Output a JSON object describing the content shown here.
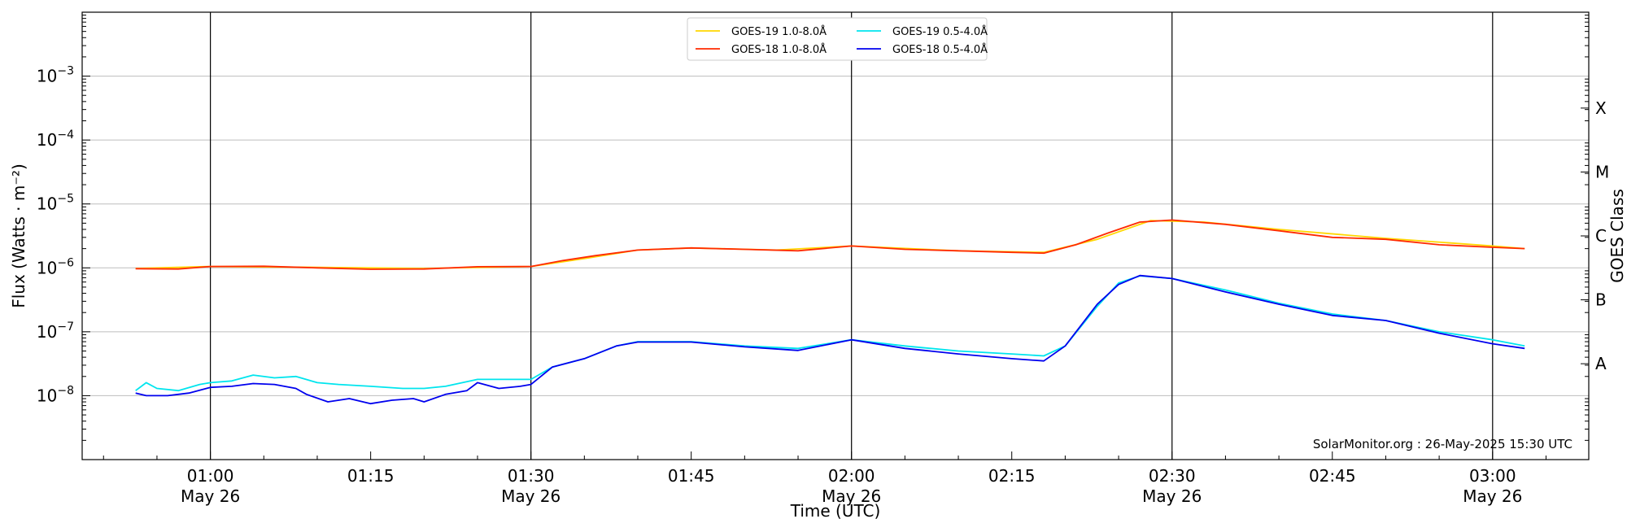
{
  "chart_data": {
    "type": "line",
    "xlabel": "Time (UTC)",
    "ylabel": "Flux (Watts · m⁻²)",
    "y2label": "GOES Class",
    "ylog": true,
    "ylim": [
      1e-09,
      0.01
    ],
    "xlim": [
      "2025-05-26 00:48",
      "2025-05-26 03:09"
    ],
    "grid": "horizontal major y",
    "legend_placement": "top-center",
    "y_ticks": [
      {
        "value": 1e-08,
        "base": "10",
        "exp": "−8"
      },
      {
        "value": 1e-07,
        "base": "10",
        "exp": "−7"
      },
      {
        "value": 1e-06,
        "base": "10",
        "exp": "−6"
      },
      {
        "value": 1e-05,
        "base": "10",
        "exp": "−5"
      },
      {
        "value": 0.0001,
        "base": "10",
        "exp": "−4"
      },
      {
        "value": 0.001,
        "base": "10",
        "exp": "−3"
      }
    ],
    "x_ticks": [
      {
        "time": "01:00",
        "label": "01:00",
        "sub": "May 26"
      },
      {
        "time": "01:15",
        "label": "01:15",
        "sub": ""
      },
      {
        "time": "01:30",
        "label": "01:30",
        "sub": "May 26"
      },
      {
        "time": "01:45",
        "label": "01:45",
        "sub": ""
      },
      {
        "time": "02:00",
        "label": "02:00",
        "sub": "May 26"
      },
      {
        "time": "02:15",
        "label": "02:15",
        "sub": ""
      },
      {
        "time": "02:30",
        "label": "02:30",
        "sub": "May 26"
      },
      {
        "time": "02:45",
        "label": "02:45",
        "sub": ""
      },
      {
        "time": "03:00",
        "label": "03:00",
        "sub": "May 26"
      }
    ],
    "vertical_markers": [
      "01:00",
      "01:30",
      "02:00",
      "02:30",
      "03:00"
    ],
    "goes_classes": [
      {
        "label": "X",
        "flux": 0.0001
      },
      {
        "label": "M",
        "flux": 1e-05
      },
      {
        "label": "C",
        "flux": 1e-06
      },
      {
        "label": "B",
        "flux": 1e-07
      },
      {
        "label": "A",
        "flux": 1e-08
      }
    ],
    "watermark": "SolarMonitor.org : 26-May-2025 15:30 UTC",
    "series": [
      {
        "name": "GOES-19 1.0-8.0Å",
        "color": "#ffd700",
        "x": [
          "00:53",
          "01:00",
          "01:10",
          "01:20",
          "01:30",
          "01:35",
          "01:40",
          "01:45",
          "01:53",
          "02:00",
          "02:10",
          "02:18",
          "02:23",
          "02:28",
          "02:33",
          "02:40",
          "02:50",
          "03:00",
          "03:03"
        ],
        "y": [
          9.8e-07,
          1.05e-06,
          1.02e-06,
          9.8e-07,
          1.05e-06,
          1.4e-06,
          1.9e-06,
          2.05e-06,
          1.9e-06,
          2.2e-06,
          1.85e-06,
          1.75e-06,
          2.8e-06,
          5.5e-06,
          5.2e-06,
          4e-06,
          2.9e-06,
          2.2e-06,
          2e-06
        ]
      },
      {
        "name": "GOES-18 1.0-8.0Å",
        "color": "#ff2a00",
        "x": [
          "00:53",
          "00:57",
          "01:00",
          "01:05",
          "01:10",
          "01:15",
          "01:20",
          "01:25",
          "01:30",
          "01:33",
          "01:36",
          "01:40",
          "01:45",
          "01:50",
          "01:55",
          "02:00",
          "02:05",
          "02:10",
          "02:15",
          "02:18",
          "02:21",
          "02:24",
          "02:27",
          "02:30",
          "02:35",
          "02:40",
          "02:45",
          "02:50",
          "02:55",
          "03:00",
          "03:03"
        ],
        "y": [
          9.7e-07,
          9.6e-07,
          1.05e-06,
          1.06e-06,
          1e-06,
          9.5e-07,
          9.6e-07,
          1.04e-06,
          1.05e-06,
          1.3e-06,
          1.55e-06,
          1.9e-06,
          2.05e-06,
          1.95e-06,
          1.85e-06,
          2.2e-06,
          1.95e-06,
          1.85e-06,
          1.75e-06,
          1.7e-06,
          2.3e-06,
          3.5e-06,
          5.2e-06,
          5.6e-06,
          4.8e-06,
          3.8e-06,
          3e-06,
          2.8e-06,
          2.3e-06,
          2.1e-06,
          2e-06
        ]
      },
      {
        "name": "GOES-19 0.5-4.0Å",
        "color": "#00e5ee",
        "x": [
          "00:53",
          "00:54",
          "00:55",
          "00:57",
          "00:59",
          "01:00",
          "01:02",
          "01:04",
          "01:06",
          "01:08",
          "01:10",
          "01:12",
          "01:15",
          "01:18",
          "01:20",
          "01:22",
          "01:25",
          "01:28",
          "01:30",
          "01:32",
          "01:35",
          "01:38",
          "01:40",
          "01:45",
          "01:50",
          "01:55",
          "02:00",
          "02:05",
          "02:10",
          "02:15",
          "02:18",
          "02:20",
          "02:23",
          "02:25",
          "02:27",
          "02:30",
          "02:35",
          "02:40",
          "02:45",
          "02:50",
          "02:55",
          "03:00",
          "03:03"
        ],
        "y": [
          1.2e-08,
          1.6e-08,
          1.3e-08,
          1.2e-08,
          1.5e-08,
          1.6e-08,
          1.7e-08,
          2.1e-08,
          1.9e-08,
          2e-08,
          1.6e-08,
          1.5e-08,
          1.4e-08,
          1.3e-08,
          1.3e-08,
          1.4e-08,
          1.8e-08,
          1.8e-08,
          1.8e-08,
          2.8e-08,
          3.8e-08,
          6e-08,
          7e-08,
          7e-08,
          6e-08,
          5.5e-08,
          7.5e-08,
          6e-08,
          5e-08,
          4.5e-08,
          4.2e-08,
          6e-08,
          2.5e-07,
          5.8e-07,
          7.5e-07,
          6.8e-07,
          4.5e-07,
          2.8e-07,
          1.9e-07,
          1.5e-07,
          1e-07,
          7.5e-08,
          6e-08
        ]
      },
      {
        "name": "GOES-18 0.5-4.0Å",
        "color": "#0000ee",
        "x": [
          "00:53",
          "00:54",
          "00:56",
          "00:58",
          "01:00",
          "01:02",
          "01:04",
          "01:06",
          "01:08",
          "01:09",
          "01:11",
          "01:13",
          "01:15",
          "01:17",
          "01:19",
          "01:20",
          "01:22",
          "01:24",
          "01:25",
          "01:27",
          "01:29",
          "01:30",
          "01:32",
          "01:35",
          "01:38",
          "01:40",
          "01:45",
          "01:50",
          "01:55",
          "02:00",
          "02:05",
          "02:10",
          "02:15",
          "02:18",
          "02:20",
          "02:23",
          "02:25",
          "02:27",
          "02:30",
          "02:35",
          "02:40",
          "02:45",
          "02:50",
          "02:55",
          "03:00",
          "03:03"
        ],
        "y": [
          1.1e-08,
          1e-08,
          1e-08,
          1.1e-08,
          1.35e-08,
          1.4e-08,
          1.55e-08,
          1.5e-08,
          1.3e-08,
          1.05e-08,
          8e-09,
          9e-09,
          7.5e-09,
          8.5e-09,
          9e-09,
          8e-09,
          1.05e-08,
          1.2e-08,
          1.6e-08,
          1.3e-08,
          1.4e-08,
          1.5e-08,
          2.8e-08,
          3.8e-08,
          6e-08,
          6.9e-08,
          6.9e-08,
          5.8e-08,
          5.1e-08,
          7.5e-08,
          5.5e-08,
          4.5e-08,
          3.8e-08,
          3.5e-08,
          6e-08,
          2.7e-07,
          5.5e-07,
          7.6e-07,
          6.8e-07,
          4.2e-07,
          2.7e-07,
          1.8e-07,
          1.5e-07,
          9.5e-08,
          6.5e-08,
          5.5e-08
        ]
      }
    ]
  }
}
